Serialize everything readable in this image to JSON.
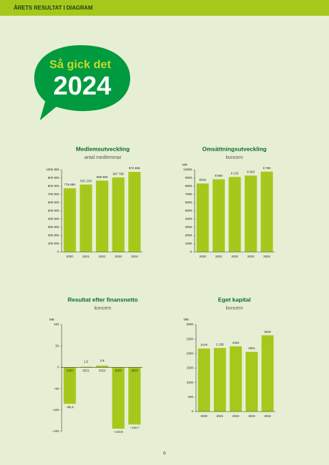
{
  "header": "ÅRETS RESULTAT I DIAGRAM",
  "badge": {
    "line1": "Så gick det",
    "line2": "2024"
  },
  "page_number": "6",
  "chart_data": [
    {
      "type": "bar",
      "title": "Medlemsutveckling",
      "subtitle": "antal medlemmar",
      "color": "#a6c81c",
      "categories": [
        "2020",
        "2021",
        "2022",
        "2023",
        "2024"
      ],
      "values": [
        775690,
        821219,
        868566,
        907795,
        974865
      ],
      "value_labels": [
        "775 690",
        "821 219",
        "868 566",
        "907 795",
        "974 865"
      ],
      "ylim": [
        0,
        1000000
      ],
      "yticks": [
        0,
        {
          "value": 100000,
          "label": "100 000"
        },
        {
          "value": 200000,
          "label": "200 000"
        },
        {
          "value": 300000,
          "label": "300 000"
        },
        {
          "value": 400000,
          "label": "400 000"
        },
        {
          "value": 500000,
          "label": "500 000"
        },
        {
          "value": 600000,
          "label": "600 000"
        },
        {
          "value": 700000,
          "label": "700 000"
        },
        {
          "value": 800000,
          "label": "800 000"
        },
        {
          "value": 900000,
          "label": "900 000"
        },
        {
          "value": 1000000,
          "label": "1000 000"
        }
      ]
    },
    {
      "type": "bar",
      "title": "Omsättningsutveckling",
      "subtitle": "koncern",
      "unit": "Mkr",
      "color": "#a6c81c",
      "categories": [
        "2020",
        "2021",
        "2022",
        "2023",
        "2024"
      ],
      "values": [
        8342,
        8850,
        9132,
        9303,
        9780
      ],
      "value_labels": [
        "8342",
        "8 850",
        "9 132",
        "9 303",
        "9 780"
      ],
      "ylim": [
        0,
        10000
      ],
      "yticks": [
        0,
        1000,
        2000,
        3000,
        4000,
        5000,
        6000,
        7000,
        8000,
        9000,
        10000
      ]
    },
    {
      "type": "bar",
      "title": "Resultat efter finansnetto",
      "subtitle": "koncern",
      "unit": "Mkr",
      "color": "#a6c81c",
      "categories": [
        "2020",
        "2021",
        "2022",
        "2023",
        "2024"
      ],
      "values": [
        -85.3,
        1.5,
        3.9,
        -143.6,
        -133.7
      ],
      "value_labels": [
        "–85,3",
        "1,5",
        "3,9",
        "–143,6",
        "–133,7"
      ],
      "ylim": [
        -150,
        100
      ],
      "yticks": [
        {
          "value": -150,
          "label": "–150"
        },
        {
          "value": -100,
          "label": "–100"
        },
        {
          "value": -50,
          "label": "–50"
        },
        0,
        50,
        100
      ]
    },
    {
      "type": "bar",
      "title": "Eget kapital",
      "subtitle": "koncern",
      "unit": "Mkr",
      "color": "#a6c81c",
      "categories": [
        "2020",
        "2021",
        "2022",
        "2023",
        "2024"
      ],
      "values": [
        2176,
        2195,
        2252,
        2061,
        2632
      ],
      "value_labels": [
        "2176",
        "2 195",
        "2252",
        "2061",
        "2632"
      ],
      "ylim": [
        0,
        3000
      ],
      "yticks": [
        0,
        500,
        1000,
        1500,
        2000,
        2500,
        3000
      ]
    }
  ]
}
